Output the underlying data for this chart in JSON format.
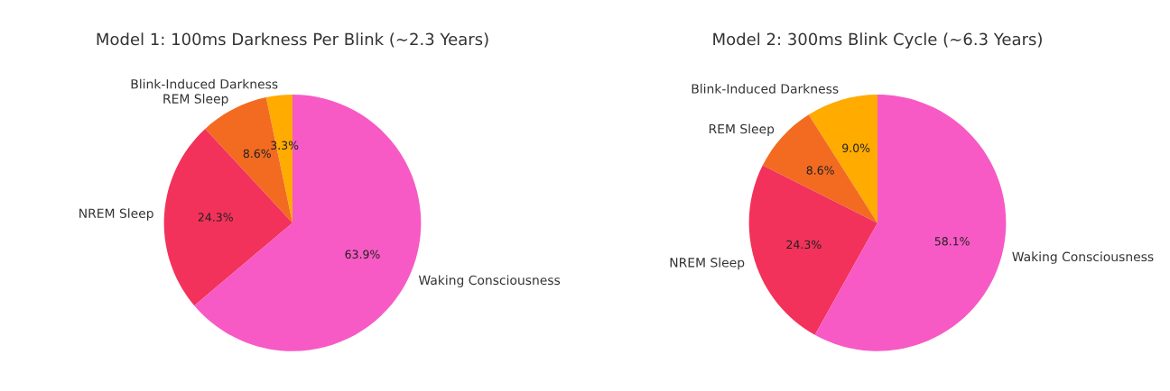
{
  "chart_data": [
    {
      "type": "pie",
      "title": "Model 1: 100ms Darkness Per Blink (~2.3 Years)",
      "categories": [
        "Blink-Induced Darkness",
        "REM Sleep",
        "NREM Sleep",
        "Waking Consciousness"
      ],
      "values": [
        3.3,
        8.6,
        24.3,
        63.9
      ],
      "value_labels": [
        "3.3%",
        "8.6%",
        "24.3%",
        "63.9%"
      ],
      "colors": [
        "#ffab00",
        "#f26b21",
        "#f2325a",
        "#f75ac4"
      ]
    },
    {
      "type": "pie",
      "title": "Model 2: 300ms Blink Cycle (~6.3 Years)",
      "categories": [
        "Blink-Induced Darkness",
        "REM Sleep",
        "NREM Sleep",
        "Waking Consciousness"
      ],
      "values": [
        9.0,
        8.6,
        24.3,
        58.1
      ],
      "value_labels": [
        "9.0%",
        "8.6%",
        "24.3%",
        "58.1%"
      ],
      "colors": [
        "#ffab00",
        "#f26b21",
        "#f2325a",
        "#f75ac4"
      ]
    }
  ]
}
